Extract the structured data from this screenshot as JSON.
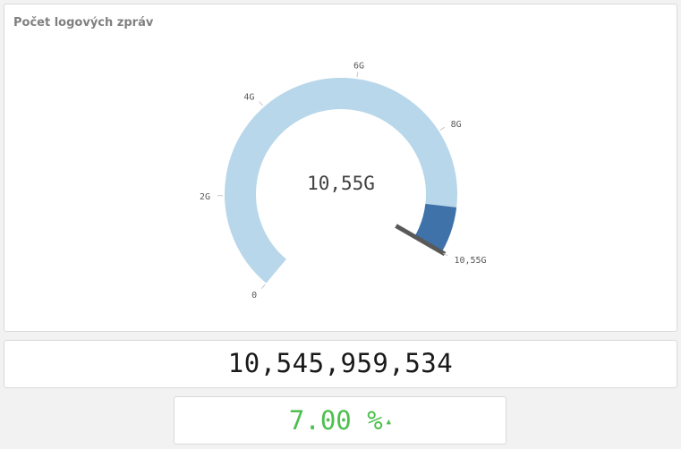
{
  "gauge_panel": {
    "title": "Počet logových zpráv",
    "value_display": "10,55G"
  },
  "chart_data": {
    "type": "gauge",
    "value": 10.55,
    "unit": "G",
    "min": 0,
    "max": 10.55,
    "ticks": [
      {
        "value": 0,
        "label": "0"
      },
      {
        "value": 2,
        "label": "2G"
      },
      {
        "value": 4,
        "label": "4G"
      },
      {
        "value": 6,
        "label": "6G"
      },
      {
        "value": 8,
        "label": "8G"
      },
      {
        "value": 10.55,
        "label": "10,55G"
      }
    ],
    "segments": [
      {
        "from": 0,
        "to": 9.6,
        "color": "#b8d7ea"
      },
      {
        "from": 9.6,
        "to": 10.55,
        "color": "#3f72a8"
      }
    ],
    "needle_color": "#595959"
  },
  "count_panel": {
    "value": "10,545,959,534"
  },
  "change_panel": {
    "value": "7.00 %",
    "arrow": "▲",
    "color": "#4cbf4c"
  }
}
